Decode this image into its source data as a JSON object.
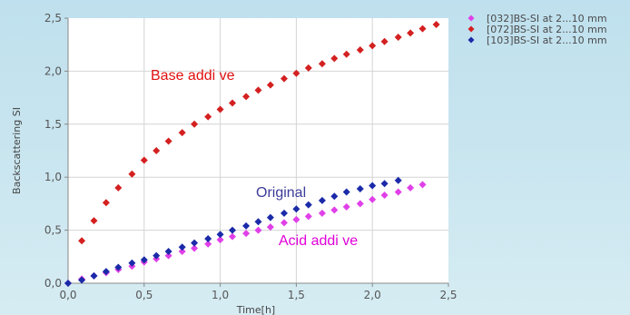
{
  "chart_data": {
    "type": "scatter",
    "title": "",
    "xlabel": "Time[h]",
    "ylabel": "Backscattering SI",
    "xlim": [
      0,
      2.5
    ],
    "ylim": [
      0,
      2.5
    ],
    "x_ticks": [
      "0,0",
      "0,5",
      "1,0",
      "1,5",
      "2,0",
      "2,5"
    ],
    "y_ticks": [
      "0,0",
      "0,5",
      "1,0",
      "1,5",
      "2,0",
      "2,5"
    ],
    "grid": true,
    "legend_position": "top-right, outside plot",
    "series": [
      {
        "name": "[032]BS-SI at 2...10 mm",
        "color": "#e040e8",
        "x": [
          0,
          0.09,
          0.17,
          0.25,
          0.33,
          0.42,
          0.5,
          0.58,
          0.66,
          0.75,
          0.83,
          0.92,
          1.0,
          1.08,
          1.17,
          1.25,
          1.33,
          1.42,
          1.5,
          1.58,
          1.67,
          1.75,
          1.83,
          1.92,
          2.0,
          2.08,
          2.17,
          2.25,
          2.33
        ],
        "y": [
          0.0,
          0.04,
          0.07,
          0.1,
          0.13,
          0.16,
          0.2,
          0.23,
          0.26,
          0.3,
          0.33,
          0.37,
          0.41,
          0.44,
          0.47,
          0.5,
          0.53,
          0.57,
          0.6,
          0.63,
          0.66,
          0.69,
          0.72,
          0.75,
          0.79,
          0.83,
          0.86,
          0.9,
          0.93
        ]
      },
      {
        "name": "[072]BS-SI at 2...10 mm",
        "color": "#d42020",
        "x": [
          0.09,
          0.17,
          0.25,
          0.33,
          0.42,
          0.5,
          0.58,
          0.66,
          0.75,
          0.83,
          0.92,
          1.0,
          1.08,
          1.17,
          1.25,
          1.33,
          1.42,
          1.5,
          1.58,
          1.67,
          1.75,
          1.83,
          1.92,
          2.0,
          2.08,
          2.17,
          2.25,
          2.33,
          2.42
        ],
        "y": [
          0.4,
          0.59,
          0.76,
          0.9,
          1.03,
          1.16,
          1.25,
          1.34,
          1.42,
          1.5,
          1.57,
          1.64,
          1.7,
          1.76,
          1.82,
          1.87,
          1.93,
          1.98,
          2.03,
          2.07,
          2.12,
          2.16,
          2.2,
          2.24,
          2.28,
          2.32,
          2.36,
          2.4,
          2.44
        ]
      },
      {
        "name": "[103]BS-SI at 2...10 mm",
        "color": "#1a2aa8",
        "x": [
          0,
          0.09,
          0.17,
          0.25,
          0.33,
          0.42,
          0.5,
          0.58,
          0.66,
          0.75,
          0.83,
          0.92,
          1.0,
          1.08,
          1.17,
          1.25,
          1.33,
          1.42,
          1.5,
          1.58,
          1.67,
          1.75,
          1.83,
          1.92,
          2.0,
          2.08,
          2.17
        ],
        "y": [
          0.0,
          0.03,
          0.07,
          0.11,
          0.15,
          0.19,
          0.22,
          0.26,
          0.3,
          0.34,
          0.38,
          0.42,
          0.46,
          0.5,
          0.54,
          0.58,
          0.62,
          0.66,
          0.7,
          0.74,
          0.78,
          0.82,
          0.86,
          0.89,
          0.92,
          0.94,
          0.97
        ]
      }
    ],
    "annotations": [
      {
        "text": "Base addi  ve",
        "color": "#e01010"
      },
      {
        "text": "Original",
        "color": "#3c3c9a"
      },
      {
        "text": "Acid addi  ve",
        "color": "#e000d8"
      }
    ]
  }
}
